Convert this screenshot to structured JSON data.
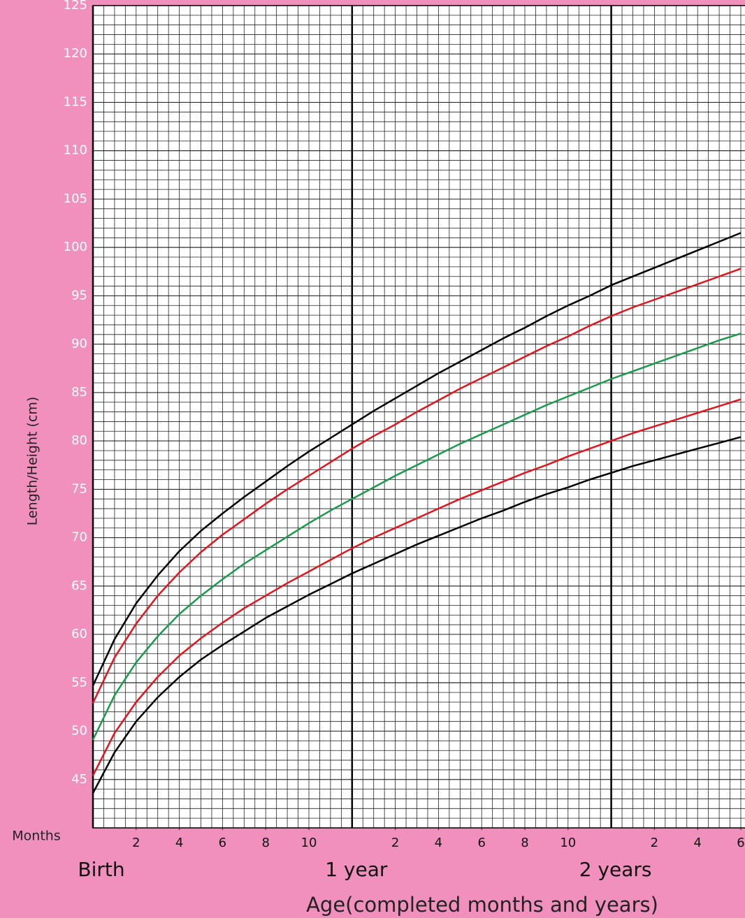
{
  "chart_data": {
    "type": "line",
    "ylabel": "Length/Height (cm)",
    "xlabel": "Age(completed months and years)",
    "x_unit_label": "Months",
    "x": [
      0,
      1,
      2,
      3,
      4,
      5,
      6,
      7,
      8,
      9,
      10,
      11,
      12,
      13,
      14,
      15,
      16,
      17,
      18,
      19,
      20,
      21,
      22,
      23,
      24,
      25,
      26,
      27,
      28,
      29,
      30
    ],
    "series": [
      {
        "color": "#000000",
        "values": [
          54.7,
          59.5,
          63.2,
          66.1,
          68.6,
          70.7,
          72.5,
          74.2,
          75.8,
          77.4,
          78.9,
          80.3,
          81.7,
          83.1,
          84.4,
          85.7,
          87.0,
          88.2,
          89.4,
          90.6,
          91.7,
          92.9,
          94.0,
          95.0,
          96.1,
          97.0,
          97.9,
          98.8,
          99.7,
          100.6,
          101.5
        ]
      },
      {
        "color": "#e0161f",
        "values": [
          52.9,
          57.6,
          61.1,
          64.0,
          66.4,
          68.5,
          70.3,
          71.9,
          73.5,
          75.0,
          76.4,
          77.8,
          79.2,
          80.5,
          81.7,
          83.0,
          84.2,
          85.4,
          86.5,
          87.6,
          88.7,
          89.8,
          90.8,
          91.9,
          92.9,
          93.8,
          94.6,
          95.4,
          96.2,
          97.0,
          97.8
        ]
      },
      {
        "color": "#1a9a4a",
        "values": [
          49.1,
          53.7,
          57.1,
          59.8,
          62.1,
          64.0,
          65.7,
          67.3,
          68.7,
          70.1,
          71.5,
          72.8,
          74.0,
          75.2,
          76.4,
          77.5,
          78.6,
          79.7,
          80.7,
          81.7,
          82.7,
          83.7,
          84.6,
          85.5,
          86.4,
          87.2,
          88.0,
          88.8,
          89.6,
          90.4,
          91.1
        ]
      },
      {
        "color": "#e0161f",
        "values": [
          45.4,
          49.8,
          53.0,
          55.6,
          57.8,
          59.6,
          61.2,
          62.7,
          64.0,
          65.3,
          66.5,
          67.7,
          68.9,
          70.0,
          71.0,
          72.0,
          73.0,
          74.0,
          74.9,
          75.8,
          76.7,
          77.5,
          78.4,
          79.2,
          80.0,
          80.8,
          81.5,
          82.2,
          82.9,
          83.6,
          84.3
        ]
      },
      {
        "color": "#000000",
        "values": [
          43.6,
          47.8,
          51.0,
          53.5,
          55.6,
          57.4,
          58.9,
          60.3,
          61.7,
          62.9,
          64.1,
          65.2,
          66.3,
          67.3,
          68.3,
          69.3,
          70.2,
          71.1,
          72.0,
          72.8,
          73.7,
          74.5,
          75.2,
          76.0,
          76.7,
          77.4,
          78.0,
          78.6,
          79.2,
          79.8,
          80.4
        ]
      }
    ],
    "xlim": [
      0,
      30
    ],
    "ylim": [
      40,
      125
    ],
    "xticks": [
      2,
      4,
      6,
      8,
      10,
      {
        "value": 14,
        "label": "2"
      },
      {
        "value": 16,
        "label": "4"
      },
      {
        "value": 18,
        "label": "6"
      },
      {
        "value": 20,
        "label": "8"
      },
      {
        "value": 22,
        "label": "10"
      },
      {
        "value": 26,
        "label": "2"
      },
      {
        "value": 28,
        "label": "4"
      },
      {
        "value": 30,
        "label": "6"
      }
    ],
    "yticks": [
      45,
      50,
      55,
      60,
      65,
      70,
      75,
      80,
      85,
      90,
      95,
      100,
      105,
      110,
      115,
      120,
      125
    ],
    "age_labels": [
      {
        "value": 0,
        "label": "Birth"
      },
      {
        "value": 12,
        "label": "1 year"
      },
      {
        "value": 24,
        "label": "2 years"
      }
    ],
    "grid": true,
    "x_minor_step": 0.5,
    "y_minor_step": 1
  }
}
